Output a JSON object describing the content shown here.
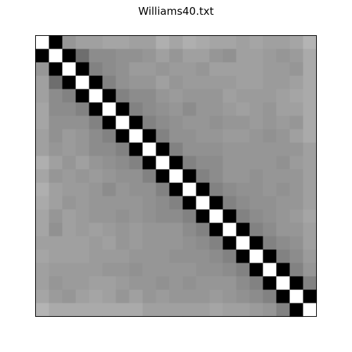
{
  "chart_data": {
    "type": "heatmap",
    "title": "Williams40.txt",
    "xlabel": "",
    "ylabel": "",
    "rows": 21,
    "cols": 21,
    "colormap": "gray",
    "axes_ticks": false,
    "values": [
      [
        255,
        0,
        150,
        160,
        160,
        165,
        165,
        160,
        160,
        175,
        165,
        175,
        170,
        165,
        165,
        160,
        165,
        160,
        160,
        165,
        180
      ],
      [
        0,
        255,
        0,
        110,
        140,
        140,
        145,
        145,
        150,
        160,
        150,
        160,
        160,
        150,
        145,
        160,
        160,
        155,
        150,
        155,
        170
      ],
      [
        150,
        0,
        255,
        0,
        130,
        140,
        145,
        155,
        155,
        150,
        155,
        155,
        150,
        160,
        160,
        160,
        160,
        155,
        155,
        150,
        170
      ],
      [
        160,
        110,
        0,
        255,
        0,
        130,
        145,
        150,
        150,
        160,
        150,
        155,
        155,
        155,
        155,
        160,
        160,
        155,
        155,
        160,
        170
      ],
      [
        160,
        140,
        130,
        0,
        255,
        0,
        130,
        140,
        140,
        150,
        155,
        150,
        150,
        150,
        160,
        155,
        155,
        155,
        160,
        165,
        170
      ],
      [
        165,
        140,
        140,
        130,
        0,
        255,
        0,
        130,
        140,
        145,
        150,
        140,
        150,
        150,
        155,
        160,
        155,
        150,
        160,
        160,
        170
      ],
      [
        165,
        145,
        145,
        145,
        130,
        0,
        255,
        0,
        130,
        140,
        145,
        150,
        150,
        145,
        150,
        150,
        155,
        150,
        155,
        150,
        170
      ],
      [
        160,
        145,
        155,
        150,
        140,
        130,
        0,
        255,
        0,
        130,
        145,
        145,
        150,
        150,
        155,
        155,
        150,
        145,
        150,
        160,
        170
      ],
      [
        160,
        150,
        155,
        150,
        140,
        140,
        130,
        0,
        255,
        0,
        130,
        145,
        145,
        145,
        150,
        150,
        150,
        150,
        150,
        150,
        160
      ],
      [
        175,
        160,
        150,
        160,
        150,
        145,
        140,
        130,
        0,
        255,
        0,
        130,
        140,
        140,
        150,
        150,
        150,
        150,
        145,
        155,
        160
      ],
      [
        165,
        150,
        155,
        150,
        155,
        150,
        145,
        145,
        130,
        0,
        255,
        0,
        130,
        140,
        150,
        150,
        145,
        150,
        150,
        150,
        160
      ],
      [
        175,
        160,
        155,
        155,
        150,
        140,
        150,
        145,
        145,
        130,
        0,
        255,
        0,
        130,
        140,
        145,
        145,
        150,
        145,
        150,
        160
      ],
      [
        170,
        160,
        150,
        155,
        150,
        150,
        150,
        150,
        145,
        140,
        130,
        0,
        255,
        0,
        130,
        140,
        145,
        145,
        150,
        150,
        160
      ],
      [
        165,
        150,
        160,
        155,
        150,
        150,
        145,
        150,
        145,
        140,
        140,
        130,
        0,
        255,
        0,
        130,
        140,
        145,
        150,
        155,
        165
      ],
      [
        165,
        145,
        160,
        155,
        160,
        155,
        150,
        155,
        150,
        150,
        150,
        140,
        130,
        0,
        255,
        0,
        130,
        140,
        150,
        150,
        160
      ],
      [
        160,
        160,
        160,
        160,
        155,
        160,
        150,
        155,
        150,
        150,
        150,
        145,
        140,
        130,
        0,
        255,
        0,
        130,
        140,
        145,
        160
      ],
      [
        165,
        160,
        160,
        160,
        155,
        155,
        155,
        150,
        150,
        150,
        145,
        145,
        145,
        140,
        130,
        0,
        255,
        0,
        130,
        140,
        155
      ],
      [
        160,
        155,
        155,
        155,
        155,
        150,
        150,
        145,
        150,
        150,
        150,
        150,
        145,
        145,
        140,
        130,
        0,
        255,
        0,
        130,
        150
      ],
      [
        160,
        150,
        155,
        155,
        160,
        160,
        155,
        150,
        150,
        145,
        150,
        145,
        150,
        150,
        150,
        140,
        130,
        0,
        255,
        0,
        130
      ],
      [
        165,
        155,
        150,
        160,
        165,
        160,
        150,
        160,
        150,
        155,
        150,
        150,
        150,
        155,
        150,
        145,
        140,
        130,
        0,
        255,
        0
      ],
      [
        180,
        170,
        170,
        170,
        170,
        170,
        170,
        170,
        160,
        160,
        160,
        160,
        160,
        165,
        160,
        160,
        155,
        150,
        130,
        0,
        255
      ]
    ]
  }
}
